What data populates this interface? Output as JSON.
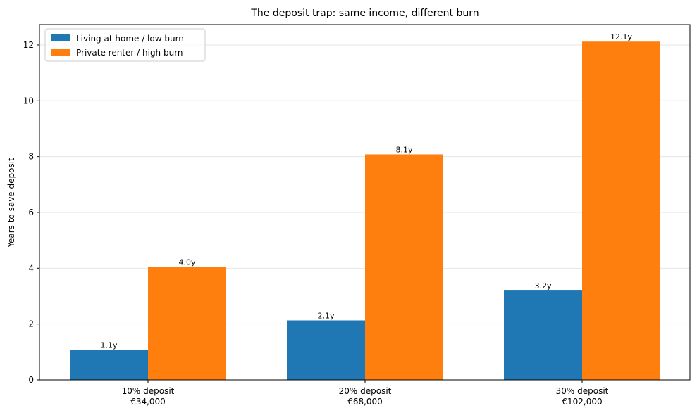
{
  "chart_data": {
    "type": "bar",
    "title": "The deposit trap: same income, different burn",
    "xlabel": "",
    "ylabel": "Years to save deposit",
    "categories": [
      [
        "10% deposit",
        "€34,000"
      ],
      [
        "20% deposit",
        "€68,000"
      ],
      [
        "30% deposit",
        "€102,000"
      ]
    ],
    "series": [
      {
        "name": "Living at home / low burn",
        "color": "#1f77b4",
        "values": [
          1.07,
          2.13,
          3.2
        ],
        "labels": [
          "1.1y",
          "2.1y",
          "3.2y"
        ]
      },
      {
        "name": "Private renter / high burn",
        "color": "#ff7f0e",
        "values": [
          4.04,
          8.08,
          12.12
        ],
        "labels": [
          "4.0y",
          "8.1y",
          "12.1y"
        ]
      }
    ],
    "ylim": [
      0,
      12.73
    ],
    "yticks": [
      0,
      2,
      4,
      6,
      8,
      10,
      12
    ],
    "grid": "y",
    "legend": "top-left"
  }
}
